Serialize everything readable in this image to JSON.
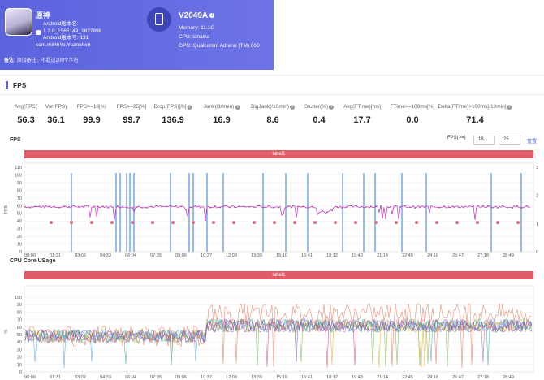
{
  "app": {
    "name": "原神",
    "android_version_label": "Android版本名:",
    "version_name": "1.2.0_1565149_1627898",
    "android_code_label": "Android版本号: 131",
    "package": "com.miHoYo.Yuanshen"
  },
  "device": {
    "name": "V2049A",
    "memory": "Memory: 11.1G",
    "cpu": "CPU: lahaina",
    "gpu": "GPU: Qualcomm Adreno (TM) 660"
  },
  "note": {
    "label": "备注:",
    "placeholder": "添加备注，不超过200个字符"
  },
  "section": {
    "title": "FPS"
  },
  "stats": [
    {
      "label": "Avg(FPS)",
      "value": "56.3",
      "help": false
    },
    {
      "label": "Var(FPS)",
      "value": "36.1",
      "help": false
    },
    {
      "label": "FPS>=18[%]",
      "value": "99.9",
      "help": false
    },
    {
      "label": "FPS>=25[%]",
      "value": "99.7",
      "help": false
    },
    {
      "label": "Drop(FPS)[/h]",
      "value": "136.9",
      "help": true
    },
    {
      "label": "Jank(/10min)",
      "value": "16.9",
      "help": true
    },
    {
      "label": "BigJank(/10min)",
      "value": "8.6",
      "help": true
    },
    {
      "label": "Stutter(%)",
      "value": "0.4",
      "help": true
    },
    {
      "label": "Avg(FTime)[ms]",
      "value": "17.7",
      "help": false
    },
    {
      "label": "FTime>=100ms[%]",
      "value": "0.0",
      "help": false
    },
    {
      "label": "Delta(FTime)>100ms[/10min]",
      "value": "71.4",
      "help": true
    }
  ],
  "fps_chart": {
    "title": "FPS",
    "threshold_label": "FPS(>=)",
    "threshold_1": "18",
    "threshold_2": "25",
    "reset_label": "重置",
    "series_label": "label1",
    "ylabel": "FPS",
    "y_ticks": [
      "110",
      "100",
      "90",
      "80",
      "70",
      "60",
      "50",
      "40",
      "30",
      "20",
      "10",
      "0"
    ],
    "y2_ticks": [
      "3",
      "2",
      "1",
      "0"
    ],
    "colors": {
      "fps": "#c040c0",
      "jank": "#2d7be0",
      "bar": "#e15c6a"
    }
  },
  "cpu_chart": {
    "title": "CPU Core USage",
    "series_label": "label1",
    "ylabel": "%",
    "y_ticks": [
      "100",
      "90",
      "80",
      "70",
      "60",
      "50",
      "40",
      "30",
      "20",
      "10",
      "0"
    ],
    "x_ticks": [
      "00:00",
      "01:31",
      "03:02",
      "04:33",
      "06:04",
      "07:35",
      "09:06",
      "10:37",
      "12:08",
      "13:39",
      "15:10",
      "16:41",
      "18:12",
      "19:43",
      "21:14",
      "22:45",
      "24:16",
      "25:47",
      "27:18",
      "28:49"
    ],
    "colors": [
      "#e57a5a",
      "#7fb850",
      "#5aa0d8",
      "#9a6fc8",
      "#e0b040",
      "#40b0a0",
      "#d05080",
      "#6060c0"
    ]
  },
  "chart_data": [
    {
      "type": "line",
      "title": "FPS",
      "xlabel": "",
      "ylabel": "FPS",
      "ylim": [
        0,
        110
      ],
      "y2lim": [
        0,
        3
      ],
      "x": [
        "00:00",
        "01:31",
        "03:02",
        "04:33",
        "06:04",
        "07:35",
        "09:06",
        "10:37",
        "12:08",
        "13:39",
        "15:10",
        "16:41",
        "18:12",
        "19:43",
        "21:14",
        "22:45",
        "24:16",
        "25:47",
        "27:18",
        "28:49"
      ],
      "series": [
        {
          "name": "label1",
          "values": [
            58,
            59,
            58,
            57,
            59,
            58,
            57,
            58,
            59,
            58,
            59,
            57,
            58,
            50,
            58,
            57,
            58,
            59,
            58,
            58
          ]
        }
      ]
    },
    {
      "type": "line",
      "title": "CPU Core USage",
      "xlabel": "",
      "ylabel": "%",
      "ylim": [
        0,
        100
      ],
      "x": [
        "00:00",
        "01:31",
        "03:02",
        "04:33",
        "06:04",
        "07:35",
        "09:06",
        "10:37",
        "12:08",
        "13:39",
        "15:10",
        "16:41",
        "18:12",
        "19:43",
        "21:14",
        "22:45",
        "24:16",
        "25:47",
        "27:18",
        "28:49"
      ],
      "series": [
        {
          "name": "label1",
          "values": [
            55,
            52,
            50,
            48,
            45,
            50,
            52,
            65,
            75,
            78,
            80,
            82,
            85,
            83,
            80,
            82,
            78,
            80,
            82,
            95
          ]
        }
      ]
    }
  ]
}
